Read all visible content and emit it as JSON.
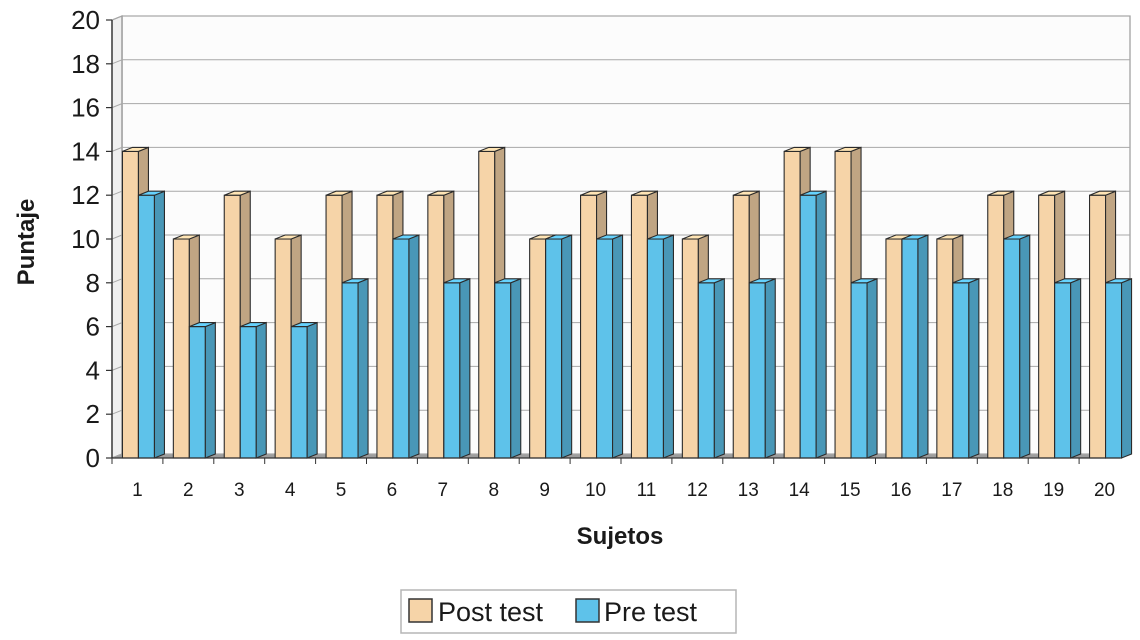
{
  "chart_data": {
    "type": "bar",
    "variant": "3d-clustered-column",
    "title": "",
    "xlabel": "Sujetos",
    "ylabel": "Puntaje",
    "ylim": [
      0,
      20
    ],
    "yticks": [
      0,
      2,
      4,
      6,
      8,
      10,
      12,
      14,
      16,
      18,
      20
    ],
    "grid": true,
    "legend_position": "bottom-center",
    "categories": [
      "1",
      "2",
      "3",
      "4",
      "5",
      "6",
      "7",
      "8",
      "9",
      "10",
      "11",
      "12",
      "13",
      "14",
      "15",
      "16",
      "17",
      "18",
      "19",
      "20"
    ],
    "series": [
      {
        "name": "Post test",
        "color": "#f6d4a8",
        "values": [
          14,
          10,
          12,
          10,
          12,
          12,
          12,
          14,
          10,
          12,
          12,
          10,
          12,
          14,
          14,
          10,
          10,
          12,
          12,
          12
        ]
      },
      {
        "name": "Pre test",
        "color": "#5ec2ea",
        "values": [
          12,
          6,
          6,
          6,
          8,
          10,
          8,
          8,
          10,
          10,
          10,
          8,
          8,
          12,
          8,
          10,
          8,
          10,
          8,
          8
        ]
      }
    ]
  }
}
